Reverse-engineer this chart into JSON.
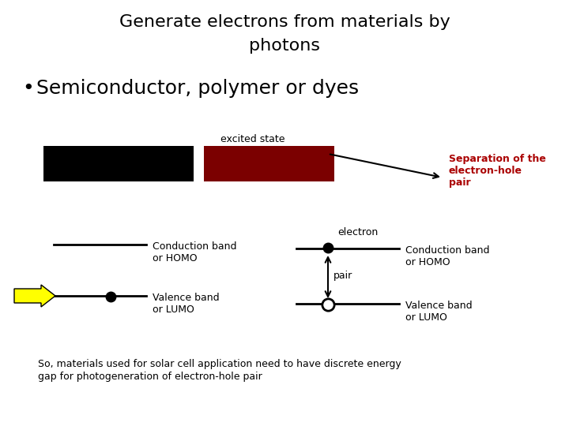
{
  "title_line1": "Generate electrons from materials by",
  "title_line2": "photons",
  "bullet_text": "Semiconductor, polymer or dyes",
  "excited_state_label": "excited state",
  "separation_label": "Separation of the\nelectron-hole\npair",
  "left_rect_color": "#000000",
  "right_rect_color": "#7b0000",
  "conduction_label_left": "Conduction band\nor HOMO",
  "valence_label_left": "Valence band\nor LUMO",
  "conduction_label_right": "Conduction band\nor HOMO",
  "valence_label_right": "Valence band\nor LUMO",
  "electron_label": "electron",
  "pair_label": "pair",
  "bottom_text_line1": "So, materials used for solar cell application need to have discrete energy",
  "bottom_text_line2": "gap for photogeneration of electron-hole pair",
  "background_color": "#ffffff",
  "title_color": "#000000",
  "separation_color": "#aa0000",
  "arrow_color": "#000000",
  "yellow_arrow_color": "#ffff00",
  "title_fontsize": 16,
  "bullet_fontsize": 18,
  "label_fontsize": 9,
  "small_fontsize": 9,
  "sep_fontsize": 9
}
